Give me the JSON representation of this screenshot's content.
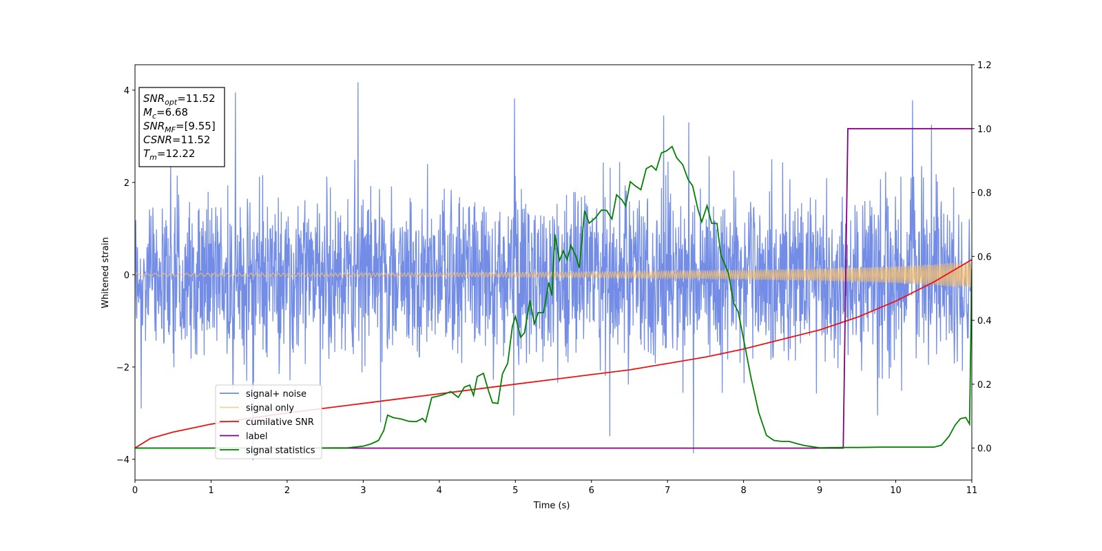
{
  "chart_data": {
    "type": "line",
    "title": "",
    "xlabel": "Time (s)",
    "ylabel": "Whitened strain",
    "xlim": [
      0,
      11
    ],
    "ylim": [
      -4.45,
      4.55
    ],
    "y2lim": [
      -0.1,
      1.2
    ],
    "xticks": [
      "0",
      "1",
      "2",
      "3",
      "4",
      "5",
      "6",
      "7",
      "8",
      "9",
      "10",
      "11"
    ],
    "yticks": [
      "4",
      "2",
      "0",
      "−2",
      "−4"
    ],
    "y2ticks": [
      "1.2",
      "1.0",
      "0.8",
      "0.6",
      "0.4",
      "0.2",
      "0.0"
    ],
    "grid": false,
    "legend_position": "lower-left",
    "colors": {
      "signal_noise": "#6b87e6",
      "signal_only": "#f5c06e",
      "cumulative_snr": "#ee1111",
      "label": "#800080",
      "signal_statistics": "#007f00"
    },
    "annotation_lines": [
      {
        "base": "SNR",
        "sub": "opt",
        "rest": "=11.52"
      },
      {
        "base": "M",
        "sub": "c",
        "rest": "=6.68"
      },
      {
        "base": "SNR",
        "sub": "MF",
        "rest": "=[9.55]"
      },
      {
        "base": "CSNR",
        "sub": "",
        "rest": "=11.52"
      },
      {
        "base": "T",
        "sub": "m",
        "rest": "=12.22"
      }
    ],
    "series": [
      {
        "name": "signal+ noise",
        "axis": "left",
        "style": "noise",
        "envelope_upper": [
          [
            0,
            2.2
          ],
          [
            1,
            2.3
          ],
          [
            2,
            2.2
          ],
          [
            3,
            2.3
          ],
          [
            4,
            2.3
          ],
          [
            5,
            2.3
          ],
          [
            6,
            2.3
          ],
          [
            7,
            2.3
          ],
          [
            8,
            2.3
          ],
          [
            9,
            2.3
          ],
          [
            10,
            2.3
          ],
          [
            11,
            2.3
          ]
        ],
        "peaks": [
          [
            1.32,
            3.95
          ],
          [
            2.93,
            4.17
          ],
          [
            4.99,
            3.82
          ],
          [
            6.95,
            3.45
          ],
          [
            7.28,
            3.3
          ],
          [
            10.22,
            3.78
          ],
          [
            10.47,
            3.25
          ],
          [
            1.55,
            -4.02
          ],
          [
            6.24,
            -3.5
          ],
          [
            7.34,
            -3.87
          ],
          [
            9.76,
            -3.05
          ],
          [
            3.23,
            -3.2
          ],
          [
            0.08,
            -2.9
          ],
          [
            4.98,
            -3.05
          ]
        ]
      },
      {
        "name": "signal only",
        "axis": "left",
        "style": "chirp",
        "amplitude_points": [
          [
            0,
            0.03
          ],
          [
            4,
            0.04
          ],
          [
            6,
            0.06
          ],
          [
            8,
            0.1
          ],
          [
            9,
            0.13
          ],
          [
            10,
            0.18
          ],
          [
            11,
            0.28
          ]
        ]
      },
      {
        "name": "cumilative SNR",
        "axis": "right",
        "points": [
          [
            0,
            0.0
          ],
          [
            0.2,
            0.03
          ],
          [
            0.5,
            0.05
          ],
          [
            1,
            0.075
          ],
          [
            1.5,
            0.093
          ],
          [
            2,
            0.11
          ],
          [
            2.5,
            0.125
          ],
          [
            3,
            0.14
          ],
          [
            3.5,
            0.155
          ],
          [
            4,
            0.17
          ],
          [
            4.5,
            0.185
          ],
          [
            5,
            0.2
          ],
          [
            5.5,
            0.215
          ],
          [
            6,
            0.23
          ],
          [
            6.5,
            0.245
          ],
          [
            7,
            0.265
          ],
          [
            7.5,
            0.285
          ],
          [
            8,
            0.31
          ],
          [
            8.5,
            0.34
          ],
          [
            9,
            0.37
          ],
          [
            9.5,
            0.41
          ],
          [
            10,
            0.46
          ],
          [
            10.5,
            0.52
          ],
          [
            11,
            0.59
          ]
        ]
      },
      {
        "name": "label",
        "axis": "right",
        "points": [
          [
            0,
            0.0
          ],
          [
            9.31,
            0.0
          ],
          [
            9.37,
            1.0
          ],
          [
            11,
            1.0
          ]
        ]
      },
      {
        "name": "signal statistics",
        "axis": "right",
        "points": [
          [
            0,
            0.0
          ],
          [
            1,
            0.0
          ],
          [
            2,
            0.0
          ],
          [
            2.8,
            0.001
          ],
          [
            3.0,
            0.006
          ],
          [
            3.1,
            0.013
          ],
          [
            3.2,
            0.024
          ],
          [
            3.27,
            0.055
          ],
          [
            3.32,
            0.103
          ],
          [
            3.4,
            0.095
          ],
          [
            3.5,
            0.091
          ],
          [
            3.6,
            0.084
          ],
          [
            3.7,
            0.083
          ],
          [
            3.78,
            0.093
          ],
          [
            3.82,
            0.082
          ],
          [
            3.9,
            0.158
          ],
          [
            4.05,
            0.167
          ],
          [
            4.15,
            0.177
          ],
          [
            4.25,
            0.159
          ],
          [
            4.33,
            0.191
          ],
          [
            4.4,
            0.197
          ],
          [
            4.45,
            0.165
          ],
          [
            4.5,
            0.224
          ],
          [
            4.58,
            0.234
          ],
          [
            4.65,
            0.177
          ],
          [
            4.7,
            0.142
          ],
          [
            4.77,
            0.14
          ],
          [
            4.83,
            0.232
          ],
          [
            4.9,
            0.266
          ],
          [
            4.96,
            0.381
          ],
          [
            5.0,
            0.412
          ],
          [
            5.07,
            0.347
          ],
          [
            5.12,
            0.361
          ],
          [
            5.19,
            0.462
          ],
          [
            5.25,
            0.39
          ],
          [
            5.3,
            0.424
          ],
          [
            5.37,
            0.424
          ],
          [
            5.44,
            0.519
          ],
          [
            5.48,
            0.478
          ],
          [
            5.52,
            0.669
          ],
          [
            5.58,
            0.587
          ],
          [
            5.63,
            0.617
          ],
          [
            5.68,
            0.59
          ],
          [
            5.73,
            0.635
          ],
          [
            5.8,
            0.597
          ],
          [
            5.84,
            0.564
          ],
          [
            5.91,
            0.743
          ],
          [
            5.97,
            0.704
          ],
          [
            6.05,
            0.72
          ],
          [
            6.13,
            0.745
          ],
          [
            6.2,
            0.744
          ],
          [
            6.27,
            0.717
          ],
          [
            6.33,
            0.793
          ],
          [
            6.4,
            0.777
          ],
          [
            6.45,
            0.758
          ],
          [
            6.51,
            0.834
          ],
          [
            6.58,
            0.82
          ],
          [
            6.65,
            0.809
          ],
          [
            6.72,
            0.875
          ],
          [
            6.79,
            0.884
          ],
          [
            6.85,
            0.87
          ],
          [
            6.92,
            0.924
          ],
          [
            6.99,
            0.931
          ],
          [
            7.06,
            0.944
          ],
          [
            7.12,
            0.909
          ],
          [
            7.2,
            0.887
          ],
          [
            7.27,
            0.841
          ],
          [
            7.33,
            0.821
          ],
          [
            7.4,
            0.747
          ],
          [
            7.45,
            0.708
          ],
          [
            7.52,
            0.759
          ],
          [
            7.58,
            0.704
          ],
          [
            7.65,
            0.703
          ],
          [
            7.7,
            0.605
          ],
          [
            7.8,
            0.548
          ],
          [
            7.87,
            0.454
          ],
          [
            7.93,
            0.426
          ],
          [
            8.0,
            0.341
          ],
          [
            8.1,
            0.217
          ],
          [
            8.2,
            0.111
          ],
          [
            8.3,
            0.04
          ],
          [
            8.4,
            0.024
          ],
          [
            8.5,
            0.021
          ],
          [
            8.6,
            0.021
          ],
          [
            8.7,
            0.014
          ],
          [
            8.8,
            0.008
          ],
          [
            9.0,
            0.001
          ],
          [
            9.3,
            0.002
          ],
          [
            9.5,
            0.002
          ],
          [
            9.8,
            0.003
          ],
          [
            10.2,
            0.003
          ],
          [
            10.5,
            0.003
          ],
          [
            10.6,
            0.009
          ],
          [
            10.7,
            0.037
          ],
          [
            10.78,
            0.072
          ],
          [
            10.85,
            0.092
          ],
          [
            10.92,
            0.096
          ],
          [
            10.97,
            0.075
          ],
          [
            11.0,
            0.56
          ]
        ]
      }
    ]
  }
}
